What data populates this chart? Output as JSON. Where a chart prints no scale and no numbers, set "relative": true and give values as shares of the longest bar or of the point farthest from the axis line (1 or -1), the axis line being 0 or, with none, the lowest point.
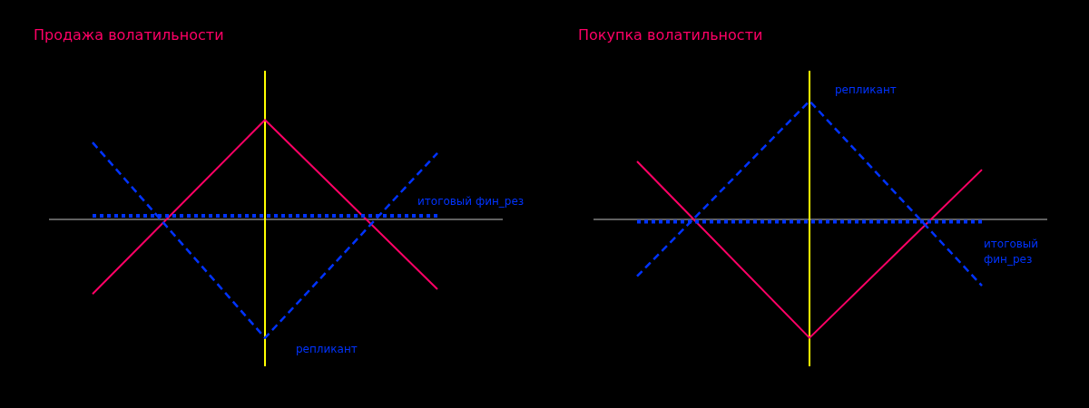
{
  "chart_data": [
    {
      "type": "line",
      "title": "Продажа волатильности",
      "relative": true,
      "categories": [
        null,
        null,
        null
      ],
      "series": [
        {
          "color": "#ff0066",
          "line_style": "solid",
          "values": [
            -0.63,
            0.84,
            -0.59
          ]
        },
        {
          "name": "репликант",
          "color": "#0033ff",
          "line_style": "dashed",
          "values": [
            0.65,
            -1,
            0.56
          ]
        },
        {
          "name": "итоговый фин_рез",
          "color": "#0033ff",
          "line_style": "dotted",
          "values": [
            0.03,
            0.03,
            0.03
          ]
        }
      ]
    },
    {
      "type": "line",
      "title": "Покупка волатильности",
      "relative": true,
      "categories": [
        null,
        null,
        null
      ],
      "series": [
        {
          "color": "#ff0066",
          "line_style": "solid",
          "values": [
            0.49,
            -1,
            0.42
          ]
        },
        {
          "name": "репликант",
          "color": "#0033ff",
          "line_style": "dashed",
          "values": [
            -0.48,
            1,
            -0.56
          ]
        },
        {
          "name": "итоговый фин_рез",
          "color": "#0033ff",
          "line_style": "dotted",
          "values": [
            -0.02,
            -0.02,
            -0.02
          ]
        }
      ]
    }
  ]
}
